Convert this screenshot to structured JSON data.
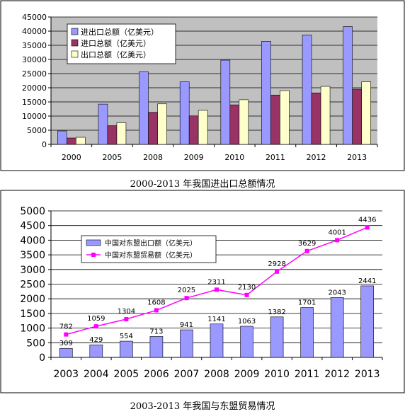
{
  "captions": {
    "chart1": "2000-2013 年我国进出口总额情况",
    "chart2": "2003-2013 年我国与东盟贸易情况"
  },
  "colors": {
    "plot_bg": "#c0c0c0",
    "import_export": "#9999ff",
    "import": "#993366",
    "export": "#ffffcc",
    "asean_bar": "#9999ff",
    "asean_line": "#ff00ff"
  },
  "chart_data": [
    {
      "type": "bar",
      "categories": [
        "2000",
        "2005",
        "2008",
        "2009",
        "2010",
        "2011",
        "2012",
        "2013"
      ],
      "series": [
        {
          "name": "进出口总额（亿美元）",
          "values": [
            4743,
            14219,
            25633,
            22075,
            29740,
            36419,
            38671,
            41600
          ]
        },
        {
          "name": "进口总额（亿美元）",
          "values": [
            2251,
            6600,
            11331,
            10059,
            13962,
            17435,
            18178,
            19503
          ]
        },
        {
          "name": "出口总额（亿美元）",
          "values": [
            2492,
            7620,
            14307,
            12016,
            15778,
            18984,
            20487,
            22100
          ]
        }
      ],
      "ylim": [
        0,
        45000
      ],
      "yticks": [
        "0",
        "5000",
        "10000",
        "15000",
        "20000",
        "25000",
        "30000",
        "35000",
        "40000",
        "45000"
      ],
      "grid": true,
      "legend": "top-left"
    },
    {
      "type": "bar",
      "categories": [
        "2003",
        "2004",
        "2005",
        "2006",
        "2007",
        "2008",
        "2009",
        "2010",
        "2011",
        "2012",
        "2013"
      ],
      "series": [
        {
          "name": "中国对东盟出口额（亿美元）",
          "kind": "bar",
          "values": [
            309,
            429,
            554,
            713,
            941,
            1141,
            1063,
            1382,
            1701,
            2043,
            2441
          ]
        },
        {
          "name": "中国对东盟贸易额（亿美元）",
          "kind": "line",
          "values": [
            782,
            1059,
            1304,
            1608,
            2025,
            2311,
            2130,
            2928,
            3629,
            4001,
            4436
          ]
        }
      ],
      "ylim": [
        0,
        5000
      ],
      "yticks": [
        "0",
        "500",
        "1000",
        "1500",
        "2000",
        "2500",
        "3000",
        "3500",
        "4000",
        "4500",
        "5000"
      ],
      "grid": true,
      "legend": "top-left"
    }
  ]
}
